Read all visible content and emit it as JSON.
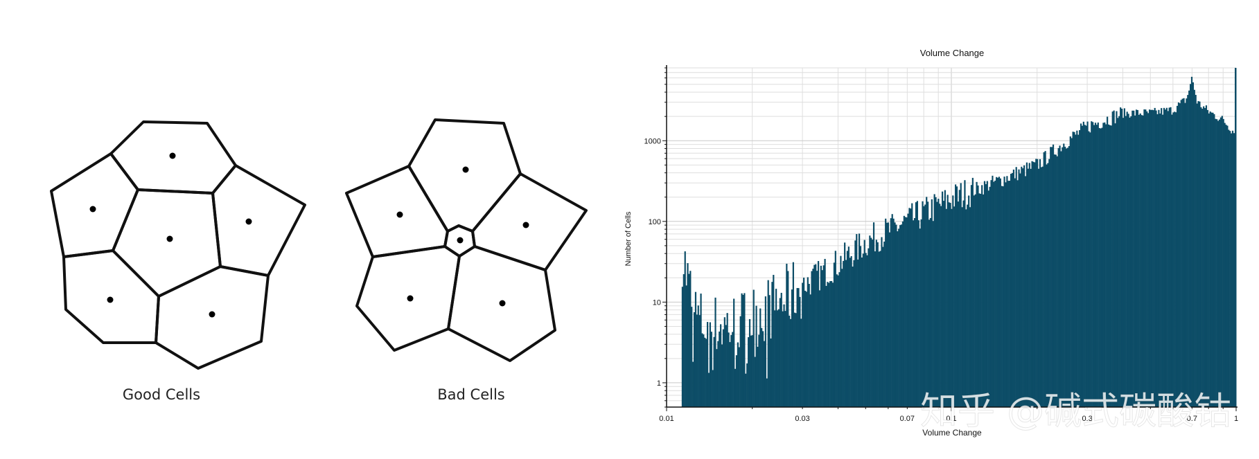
{
  "diagram": {
    "good_label": "Good Cells",
    "bad_label": "Bad Cells"
  },
  "chart_data": {
    "type": "bar",
    "title": "Volume Change",
    "xlabel": "Volume Change",
    "ylabel": "Number of Cells",
    "x_scale": "log",
    "y_scale": "log",
    "xlim": [
      0.01,
      1
    ],
    "ylim": [
      0.5,
      8000
    ],
    "x_ticks": [
      0.01,
      0.03,
      0.07,
      0.1,
      0.3,
      0.7,
      1
    ],
    "x_tick_labels": [
      "0.01",
      "0.03",
      "0.07",
      "0.1",
      "0.3",
      "0.7",
      "1"
    ],
    "y_ticks": [
      1,
      10,
      100,
      1000
    ],
    "y_tick_labels": [
      "1",
      "10",
      "100",
      "1000"
    ],
    "grid": true,
    "bar_color": "#0d4d67",
    "profile": [
      [
        0.0113,
        45
      ],
      [
        0.0118,
        20
      ],
      [
        0.0125,
        8
      ],
      [
        0.013,
        6
      ],
      [
        0.014,
        5
      ],
      [
        0.016,
        5
      ],
      [
        0.018,
        5.5
      ],
      [
        0.02,
        6.5
      ],
      [
        0.025,
        10
      ],
      [
        0.03,
        16
      ],
      [
        0.04,
        30
      ],
      [
        0.05,
        55
      ],
      [
        0.07,
        100
      ],
      [
        0.1,
        190
      ],
      [
        0.15,
        330
      ],
      [
        0.2,
        500
      ],
      [
        0.25,
        950
      ],
      [
        0.3,
        1500
      ],
      [
        0.4,
        2200
      ],
      [
        0.5,
        2200
      ],
      [
        0.6,
        2400
      ],
      [
        0.67,
        3300
      ],
      [
        0.7,
        6000
      ],
      [
        0.73,
        3000
      ],
      [
        0.8,
        2300
      ],
      [
        0.9,
        1800
      ],
      [
        1.0,
        1200
      ]
    ],
    "spike_at_1": 9000
  },
  "watermark": "知乎 @碱式碳酸钴"
}
